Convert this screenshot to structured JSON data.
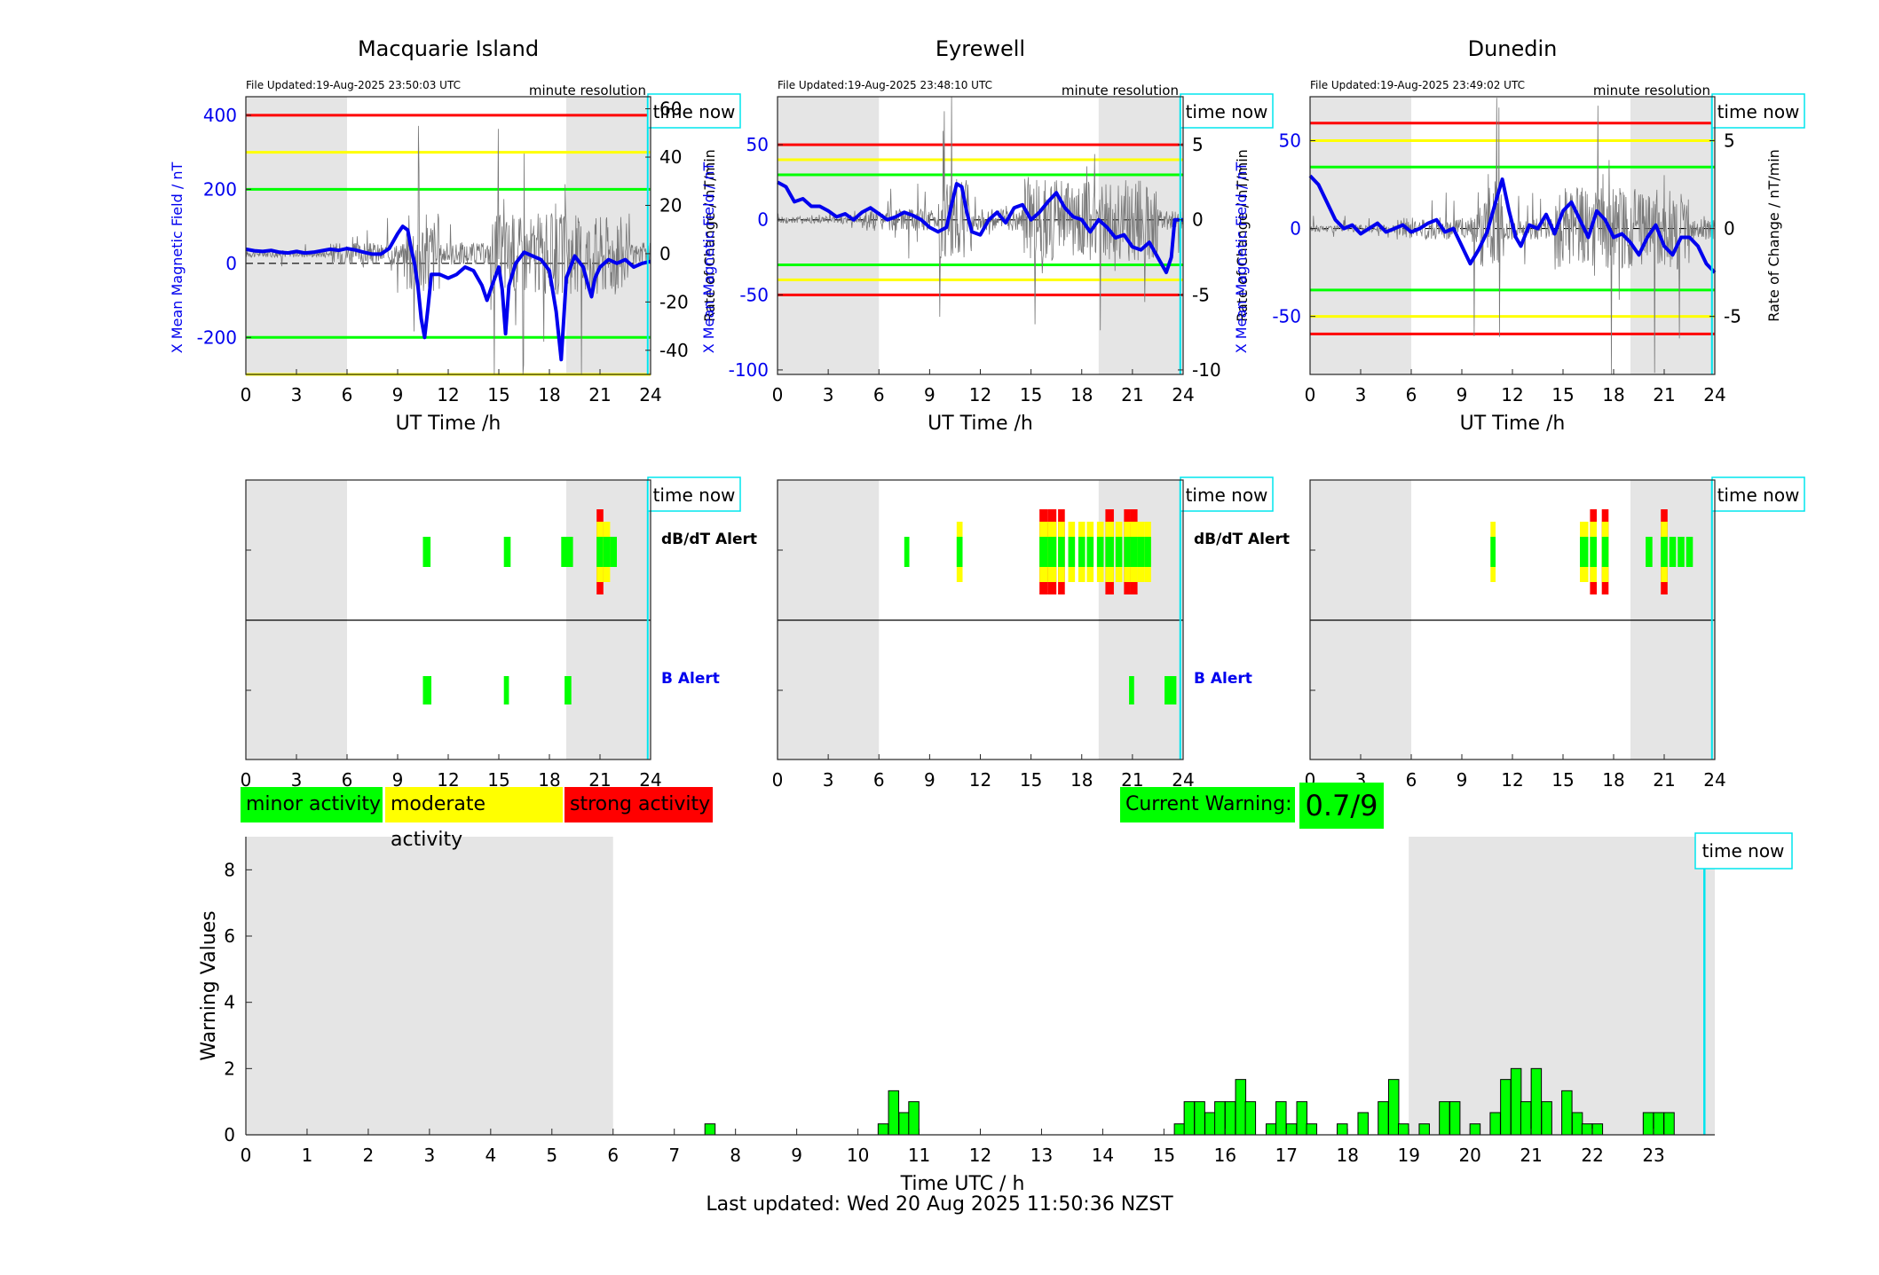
{
  "stations": [
    {
      "name": "Macquarie Island",
      "file_updated": "File Updated:19-Aug-2025 23:50:03 UTC",
      "resolution": "minute resolution",
      "b_ylim": [
        -300,
        450
      ],
      "b_ticks": [
        -200,
        0,
        200,
        400
      ],
      "r_ylim": [
        -50,
        65
      ],
      "r_ticks": [
        -40,
        -20,
        0,
        20,
        40,
        60
      ],
      "thresholds": [
        {
          "value": 400,
          "color": "#ff0000"
        },
        {
          "value": 300,
          "color": "#ffff00"
        },
        {
          "value": 200,
          "color": "#00ff00"
        },
        {
          "value": -200,
          "color": "#00ff00"
        },
        {
          "value": -300,
          "color": "#ffff00"
        }
      ],
      "b_series": [
        [
          0,
          38
        ],
        [
          0.5,
          34
        ],
        [
          1,
          32
        ],
        [
          1.5,
          35
        ],
        [
          2,
          30
        ],
        [
          2.5,
          28
        ],
        [
          3,
          32
        ],
        [
          3.5,
          28
        ],
        [
          4,
          30
        ],
        [
          4.5,
          34
        ],
        [
          5,
          38
        ],
        [
          5.5,
          35
        ],
        [
          6,
          40
        ],
        [
          6.5,
          36
        ],
        [
          7,
          30
        ],
        [
          7.5,
          25
        ],
        [
          8,
          25
        ],
        [
          8.5,
          40
        ],
        [
          9,
          80
        ],
        [
          9.3,
          100
        ],
        [
          9.6,
          90
        ],
        [
          9.8,
          40
        ],
        [
          10,
          0
        ],
        [
          10.2,
          -60
        ],
        [
          10.4,
          -150
        ],
        [
          10.6,
          -200
        ],
        [
          10.8,
          -120
        ],
        [
          11,
          -30
        ],
        [
          11.5,
          -30
        ],
        [
          12,
          -40
        ],
        [
          12.5,
          -30
        ],
        [
          13,
          -10
        ],
        [
          13.5,
          -20
        ],
        [
          14,
          -60
        ],
        [
          14.3,
          -100
        ],
        [
          14.6,
          -60
        ],
        [
          15,
          -10
        ],
        [
          15.2,
          -70
        ],
        [
          15.4,
          -190
        ],
        [
          15.6,
          -60
        ],
        [
          16,
          0
        ],
        [
          16.5,
          30
        ],
        [
          17,
          20
        ],
        [
          17.5,
          10
        ],
        [
          18,
          -20
        ],
        [
          18.4,
          -130
        ],
        [
          18.7,
          -260
        ],
        [
          19,
          -40
        ],
        [
          19.5,
          20
        ],
        [
          20,
          -10
        ],
        [
          20.3,
          -60
        ],
        [
          20.5,
          -90
        ],
        [
          20.7,
          -40
        ],
        [
          21,
          -10
        ],
        [
          21.5,
          10
        ],
        [
          22,
          0
        ],
        [
          22.5,
          10
        ],
        [
          23,
          -10
        ],
        [
          23.5,
          0
        ],
        [
          24,
          5
        ]
      ],
      "db_alert": [
        [
          10.5,
          10.95,
          "minor"
        ],
        [
          15.3,
          15.7,
          "minor"
        ],
        [
          18.7,
          19.4,
          "minor"
        ],
        [
          20.8,
          21.2,
          "strong"
        ],
        [
          21.2,
          21.6,
          "moderate"
        ],
        [
          21.6,
          22.0,
          "minor"
        ]
      ],
      "b_alert": [
        [
          10.5,
          11.0,
          "minor"
        ],
        [
          15.3,
          15.6,
          "minor"
        ],
        [
          18.9,
          19.3,
          "minor"
        ]
      ]
    },
    {
      "name": "Eyrewell",
      "file_updated": "File Updated:19-Aug-2025 23:48:10 UTC",
      "resolution": "minute resolution",
      "b_ylim": [
        -103,
        82
      ],
      "b_ticks": [
        -100,
        -50,
        0,
        50
      ],
      "r_ylim": [
        -10.3,
        8.2
      ],
      "r_ticks": [
        -10,
        -5,
        0,
        5
      ],
      "thresholds": [
        {
          "value": 50,
          "color": "#ff0000"
        },
        {
          "value": 40,
          "color": "#ffff00"
        },
        {
          "value": 30,
          "color": "#00ff00"
        },
        {
          "value": -30,
          "color": "#00ff00"
        },
        {
          "value": -40,
          "color": "#ffff00"
        },
        {
          "value": -50,
          "color": "#ff0000"
        }
      ],
      "b_series": [
        [
          0,
          25
        ],
        [
          0.5,
          22
        ],
        [
          1,
          12
        ],
        [
          1.5,
          14
        ],
        [
          2,
          9
        ],
        [
          2.5,
          9
        ],
        [
          3,
          6
        ],
        [
          3.5,
          2
        ],
        [
          4,
          4
        ],
        [
          4.5,
          0
        ],
        [
          5,
          5
        ],
        [
          5.5,
          8
        ],
        [
          6,
          4
        ],
        [
          6.5,
          0
        ],
        [
          7,
          2
        ],
        [
          7.5,
          5
        ],
        [
          8,
          3
        ],
        [
          8.5,
          0
        ],
        [
          9,
          -5
        ],
        [
          9.5,
          -8
        ],
        [
          10,
          -5
        ],
        [
          10.3,
          10
        ],
        [
          10.6,
          24
        ],
        [
          10.9,
          22
        ],
        [
          11.2,
          5
        ],
        [
          11.5,
          -8
        ],
        [
          12,
          -10
        ],
        [
          12.5,
          0
        ],
        [
          13,
          5
        ],
        [
          13.5,
          -2
        ],
        [
          14,
          8
        ],
        [
          14.5,
          10
        ],
        [
          15,
          0
        ],
        [
          15.5,
          5
        ],
        [
          16,
          12
        ],
        [
          16.5,
          18
        ],
        [
          17,
          8
        ],
        [
          17.5,
          2
        ],
        [
          18,
          0
        ],
        [
          18.5,
          -8
        ],
        [
          19,
          0
        ],
        [
          19.5,
          -5
        ],
        [
          20,
          -12
        ],
        [
          20.5,
          -10
        ],
        [
          21,
          -18
        ],
        [
          21.5,
          -20
        ],
        [
          22,
          -15
        ],
        [
          22.5,
          -25
        ],
        [
          23,
          -35
        ],
        [
          23.3,
          -25
        ],
        [
          23.5,
          0
        ],
        [
          24,
          0
        ]
      ],
      "db_alert": [
        [
          7.5,
          7.8,
          "minor"
        ],
        [
          10.6,
          10.95,
          "moderate"
        ],
        [
          15.5,
          16.0,
          "strong"
        ],
        [
          16.0,
          16.5,
          "strong"
        ],
        [
          16.6,
          17.0,
          "strong"
        ],
        [
          17.2,
          17.6,
          "moderate"
        ],
        [
          17.8,
          18.2,
          "moderate"
        ],
        [
          18.3,
          18.7,
          "moderate"
        ],
        [
          18.9,
          19.3,
          "moderate"
        ],
        [
          19.4,
          19.9,
          "strong"
        ],
        [
          20.0,
          20.4,
          "moderate"
        ],
        [
          20.5,
          20.9,
          "strong"
        ],
        [
          20.9,
          21.3,
          "strong"
        ],
        [
          21.3,
          21.7,
          "moderate"
        ],
        [
          21.7,
          22.1,
          "moderate"
        ]
      ],
      "b_alert": [
        [
          20.8,
          21.1,
          "minor"
        ],
        [
          22.9,
          23.6,
          "minor"
        ]
      ]
    },
    {
      "name": "Dunedin",
      "file_updated": "File Updated:19-Aug-2025 23:49:02 UTC",
      "resolution": "minute resolution",
      "b_ylim": [
        -83,
        75
      ],
      "b_ticks": [
        -50,
        0,
        50
      ],
      "r_ylim": [
        -8.3,
        7.5
      ],
      "r_ticks": [
        -5,
        0,
        5
      ],
      "thresholds": [
        {
          "value": 60,
          "color": "#ff0000"
        },
        {
          "value": 50,
          "color": "#ffff00"
        },
        {
          "value": 35,
          "color": "#00ff00"
        },
        {
          "value": -35,
          "color": "#00ff00"
        },
        {
          "value": -50,
          "color": "#ffff00"
        },
        {
          "value": -60,
          "color": "#ff0000"
        }
      ],
      "b_series": [
        [
          0,
          30
        ],
        [
          0.5,
          25
        ],
        [
          1,
          15
        ],
        [
          1.5,
          5
        ],
        [
          2,
          0
        ],
        [
          2.5,
          2
        ],
        [
          3,
          -3
        ],
        [
          3.5,
          0
        ],
        [
          4,
          3
        ],
        [
          4.5,
          -2
        ],
        [
          5,
          0
        ],
        [
          5.5,
          2
        ],
        [
          6,
          -2
        ],
        [
          6.5,
          0
        ],
        [
          7,
          3
        ],
        [
          7.5,
          5
        ],
        [
          8,
          -2
        ],
        [
          8.5,
          0
        ],
        [
          9,
          -10
        ],
        [
          9.5,
          -20
        ],
        [
          10,
          -12
        ],
        [
          10.5,
          -2
        ],
        [
          11,
          15
        ],
        [
          11.4,
          28
        ],
        [
          11.8,
          10
        ],
        [
          12.2,
          -5
        ],
        [
          12.5,
          -10
        ],
        [
          13,
          2
        ],
        [
          13.5,
          0
        ],
        [
          14,
          8
        ],
        [
          14.5,
          -3
        ],
        [
          15,
          10
        ],
        [
          15.5,
          15
        ],
        [
          16,
          5
        ],
        [
          16.5,
          -5
        ],
        [
          17,
          10
        ],
        [
          17.5,
          5
        ],
        [
          18,
          -5
        ],
        [
          18.5,
          -3
        ],
        [
          19,
          -8
        ],
        [
          19.5,
          -15
        ],
        [
          20,
          -5
        ],
        [
          20.5,
          2
        ],
        [
          21,
          -10
        ],
        [
          21.5,
          -15
        ],
        [
          22,
          -5
        ],
        [
          22.5,
          -5
        ],
        [
          23,
          -10
        ],
        [
          23.5,
          -20
        ],
        [
          24,
          -25
        ]
      ],
      "db_alert": [
        [
          10.7,
          11.0,
          "moderate"
        ],
        [
          16.0,
          16.5,
          "moderate"
        ],
        [
          16.6,
          17.0,
          "strong"
        ],
        [
          17.3,
          17.7,
          "strong"
        ],
        [
          19.9,
          20.3,
          "minor"
        ],
        [
          20.8,
          21.2,
          "strong"
        ],
        [
          21.3,
          21.7,
          "minor"
        ],
        [
          21.8,
          22.2,
          "minor"
        ],
        [
          22.3,
          22.7,
          "minor"
        ]
      ],
      "b_alert": []
    }
  ],
  "x_axis_label": "UT Time /h",
  "x_ticks": [
    0,
    3,
    6,
    9,
    12,
    15,
    18,
    21,
    24
  ],
  "y_label_left": "X Mean Magnetic Field / nT",
  "y_label_right": "Rate of Change / nT/min",
  "time_now_label": "time now",
  "time_now_hour": 23.83,
  "night_shade": [
    [
      0,
      6
    ],
    [
      19,
      24
    ]
  ],
  "alert_labels": {
    "db": "dB/dT Alert",
    "b": "B Alert"
  },
  "legend": [
    {
      "label": "minor activity",
      "color": "#00ff00"
    },
    {
      "label": "moderate activity",
      "color": "#ffff00"
    },
    {
      "label": "strong activity",
      "color": "#ff0000"
    }
  ],
  "current_warning": {
    "label": "Current Warning:",
    "value": "0.7/9"
  },
  "chart_data": {
    "type": "bar",
    "xlabel": "Time UTC / h",
    "ylabel": "Warning Values",
    "ylim": [
      0,
      9
    ],
    "xlim": [
      0,
      24
    ],
    "y_ticks": [
      0,
      2,
      4,
      6,
      8
    ],
    "x_ticks": [
      0,
      1,
      2,
      3,
      4,
      5,
      6,
      7,
      8,
      9,
      10,
      11,
      12,
      13,
      14,
      15,
      16,
      17,
      18,
      19,
      20,
      21,
      22,
      23
    ],
    "night_shade": [
      [
        0,
        6
      ],
      [
        19,
        24
      ]
    ],
    "time_now": 23.83,
    "bar_width_h": 0.1667,
    "bars": [
      [
        7.5,
        0.33
      ],
      [
        10.33,
        0.33
      ],
      [
        10.5,
        1.33
      ],
      [
        10.67,
        0.67
      ],
      [
        10.83,
        1.0
      ],
      [
        15.17,
        0.33
      ],
      [
        15.33,
        1.0
      ],
      [
        15.5,
        1.0
      ],
      [
        15.67,
        0.67
      ],
      [
        15.83,
        1.0
      ],
      [
        16.0,
        1.0
      ],
      [
        16.17,
        1.67
      ],
      [
        16.33,
        1.0
      ],
      [
        16.67,
        0.33
      ],
      [
        16.83,
        1.0
      ],
      [
        17.0,
        0.33
      ],
      [
        17.17,
        1.0
      ],
      [
        17.33,
        0.33
      ],
      [
        17.83,
        0.33
      ],
      [
        18.17,
        0.67
      ],
      [
        18.5,
        1.0
      ],
      [
        18.67,
        1.67
      ],
      [
        18.83,
        0.33
      ],
      [
        19.17,
        0.33
      ],
      [
        19.5,
        1.0
      ],
      [
        19.67,
        1.0
      ],
      [
        20.0,
        0.33
      ],
      [
        20.33,
        0.67
      ],
      [
        20.5,
        1.67
      ],
      [
        20.67,
        2.0
      ],
      [
        20.83,
        1.0
      ],
      [
        21.0,
        2.0
      ],
      [
        21.17,
        1.0
      ],
      [
        21.5,
        1.33
      ],
      [
        21.67,
        0.67
      ],
      [
        21.83,
        0.33
      ],
      [
        22.0,
        0.33
      ],
      [
        22.83,
        0.67
      ],
      [
        23.0,
        0.67
      ],
      [
        23.17,
        0.67
      ]
    ]
  },
  "footer": "Last updated: Wed 20 Aug 2025 11:50:36 NZST"
}
